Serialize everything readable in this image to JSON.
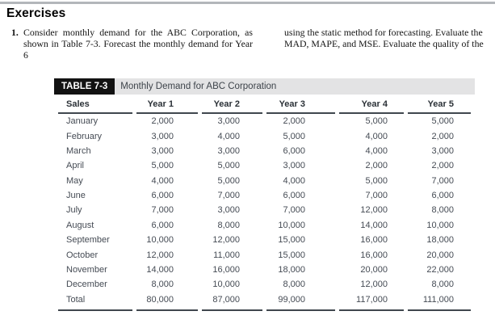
{
  "page": {
    "heading": "Exercises"
  },
  "exercise": {
    "number": "1.",
    "text_left": "Consider monthly demand for the ABC Corporation, as shown in Table 7-3. Forecast the monthly demand for Year 6",
    "text_right": "using the static method for forecasting. Evaluate the MAD, MAPE, and MSE. Evaluate the quality of the"
  },
  "table": {
    "label": "TABLE 7-3",
    "title": "Monthly Demand for ABC Corporation",
    "columns": [
      "Sales",
      "Year 1",
      "Year 2",
      "Year 3",
      "Year 4",
      "Year 5"
    ],
    "rows": [
      [
        "January",
        "2,000",
        "3,000",
        "2,000",
        "5,000",
        "5,000"
      ],
      [
        "February",
        "3,000",
        "4,000",
        "5,000",
        "4,000",
        "2,000"
      ],
      [
        "March",
        "3,000",
        "3,000",
        "6,000",
        "4,000",
        "3,000"
      ],
      [
        "April",
        "5,000",
        "5,000",
        "3,000",
        "2,000",
        "2,000"
      ],
      [
        "May",
        "4,000",
        "5,000",
        "4,000",
        "5,000",
        "7,000"
      ],
      [
        "June",
        "6,000",
        "7,000",
        "6,000",
        "7,000",
        "6,000"
      ],
      [
        "July",
        "7,000",
        "3,000",
        "7,000",
        "12,000",
        "8,000"
      ],
      [
        "August",
        "6,000",
        "8,000",
        "10,000",
        "14,000",
        "10,000"
      ],
      [
        "September",
        "10,000",
        "12,000",
        "15,000",
        "16,000",
        "18,000"
      ],
      [
        "October",
        "12,000",
        "11,000",
        "15,000",
        "16,000",
        "20,000"
      ],
      [
        "November",
        "14,000",
        "16,000",
        "18,000",
        "20,000",
        "22,000"
      ],
      [
        "December",
        "8,000",
        "10,000",
        "8,000",
        "12,000",
        "8,000"
      ],
      [
        "Total",
        "80,000",
        "87,000",
        "99,000",
        "117,000",
        "111,000"
      ]
    ]
  },
  "colors": {
    "table_label_bg": "#121212",
    "table_label_text": "#ffffff",
    "table_title_bg": "#e3e3e4",
    "table_text": "#454b54",
    "rule": "#40474e",
    "top_rule": "#b3b6ba"
  }
}
